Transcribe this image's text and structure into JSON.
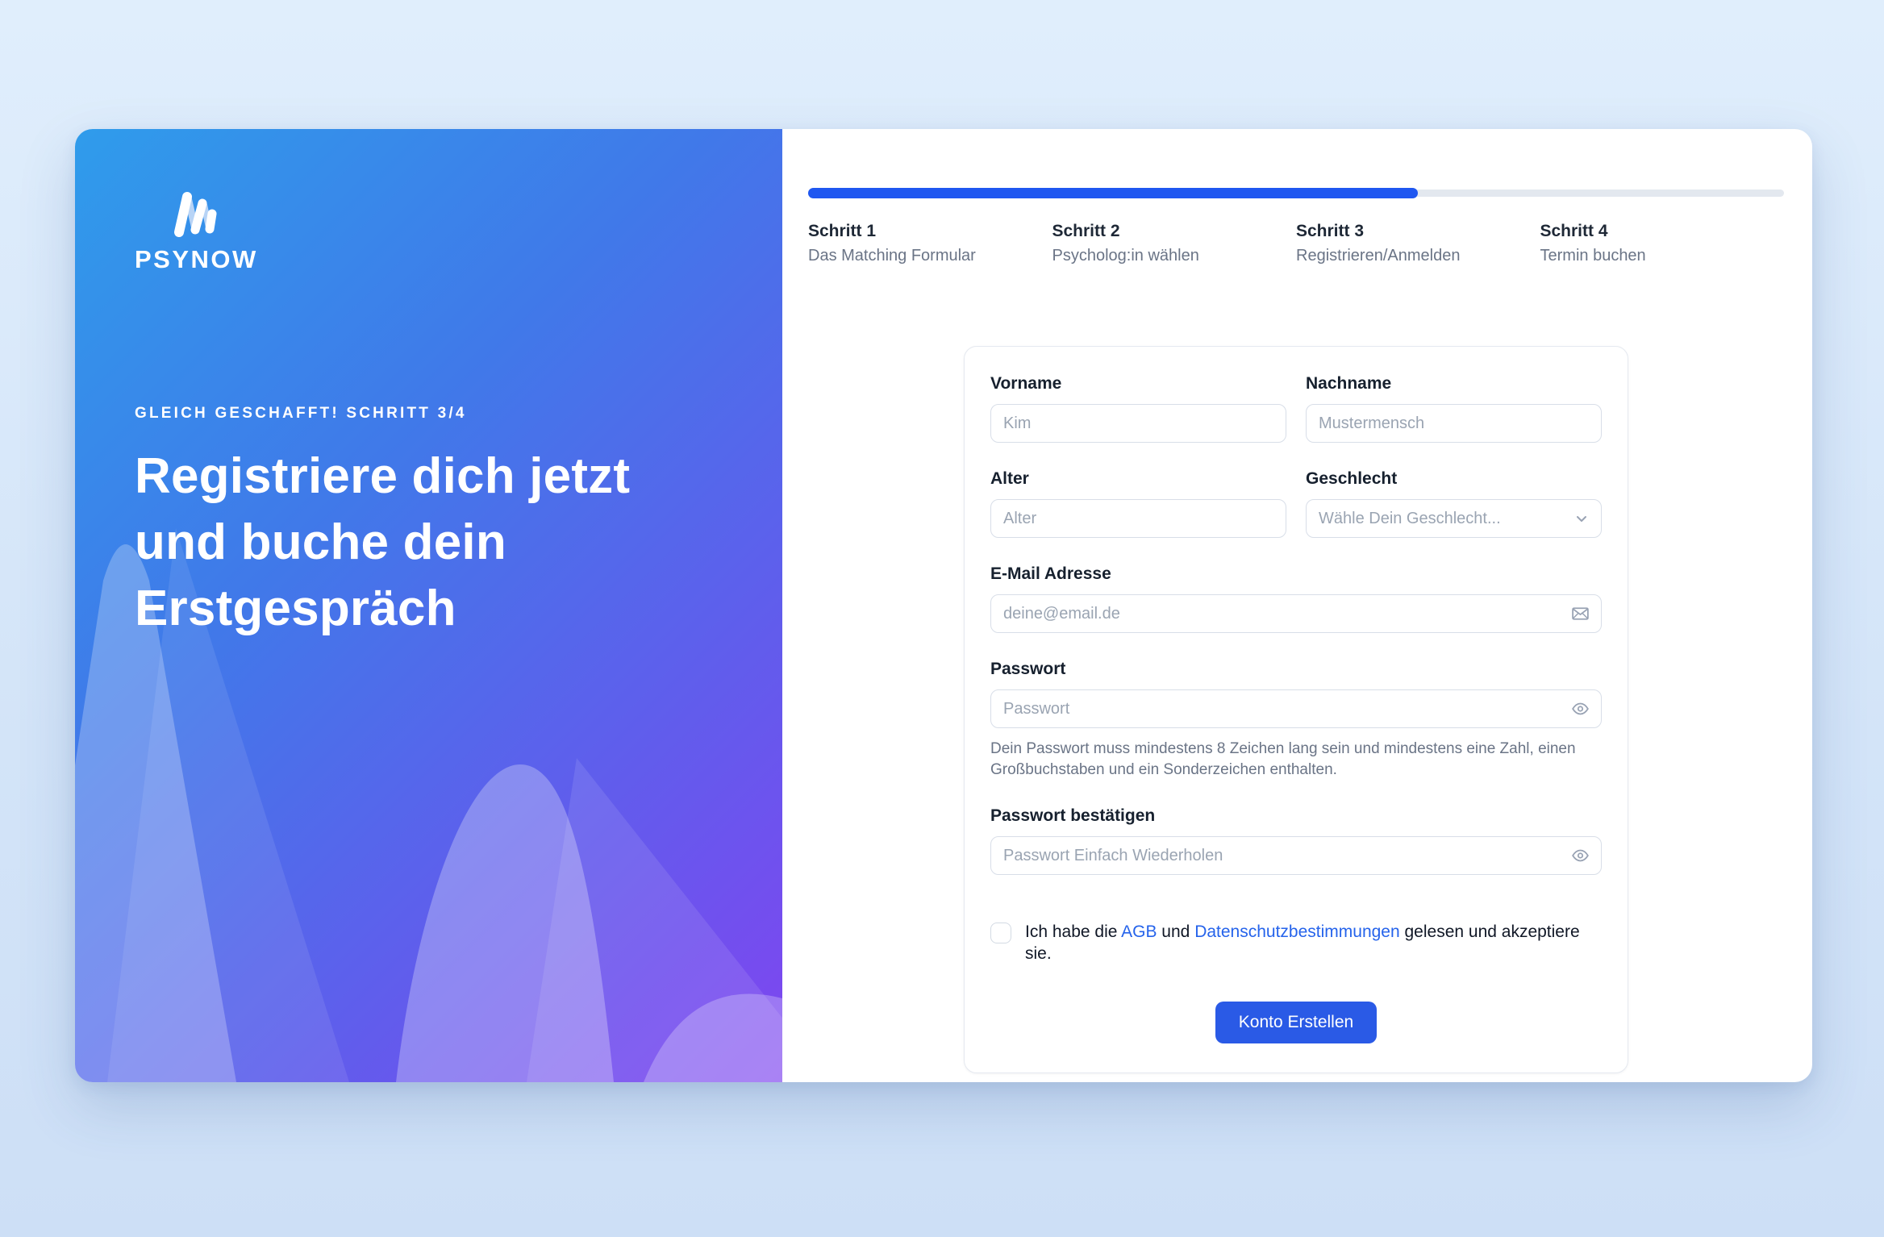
{
  "brand": {
    "name": "PSYNOW"
  },
  "left_panel": {
    "eyebrow": "GLEICH GESCHAFFT! SCHRITT 3/4",
    "heading": "Registriere dich jetzt\nund buche dein\nErstgespräch"
  },
  "progress": {
    "percent": 62.5
  },
  "steps": [
    {
      "title": "Schritt 1",
      "subtitle": "Das Matching Formular"
    },
    {
      "title": "Schritt 2",
      "subtitle": "Psycholog:in wählen"
    },
    {
      "title": "Schritt 3",
      "subtitle": "Registrieren/Anmelden"
    },
    {
      "title": "Schritt 4",
      "subtitle": "Termin buchen"
    }
  ],
  "form": {
    "vorname": {
      "label": "Vorname",
      "placeholder": "Kim"
    },
    "nachname": {
      "label": "Nachname",
      "placeholder": "Mustermensch"
    },
    "alter": {
      "label": "Alter",
      "placeholder": "Alter"
    },
    "geschlecht": {
      "label": "Geschlecht",
      "placeholder": "Wähle Dein Geschlecht..."
    },
    "email": {
      "label": "E-Mail Adresse",
      "placeholder": "deine@email.de"
    },
    "passwort": {
      "label": "Passwort",
      "placeholder": "Passwort",
      "helper": "Dein Passwort muss mindestens 8 Zeichen lang sein und mindestens eine Zahl, einen Großbuchstaben und ein Sonderzeichen enthalten."
    },
    "passwort_bestaetigen": {
      "label": "Passwort bestätigen",
      "placeholder": "Passwort Einfach Wiederholen"
    },
    "consent": {
      "prefix": "Ich habe die ",
      "link_agb": "AGB",
      "middle": " und ",
      "link_datenschutz": "Datenschutzbestimmungen",
      "suffix": " gelesen und akzeptiere sie."
    },
    "submit_label": "Konto Erstellen"
  },
  "colors": {
    "accent_blue": "#1f57f0",
    "button_blue": "#2a5ae6",
    "link_blue": "#2563eb",
    "gradient_start": "#2f9ceb",
    "gradient_end": "#7f45f0"
  }
}
